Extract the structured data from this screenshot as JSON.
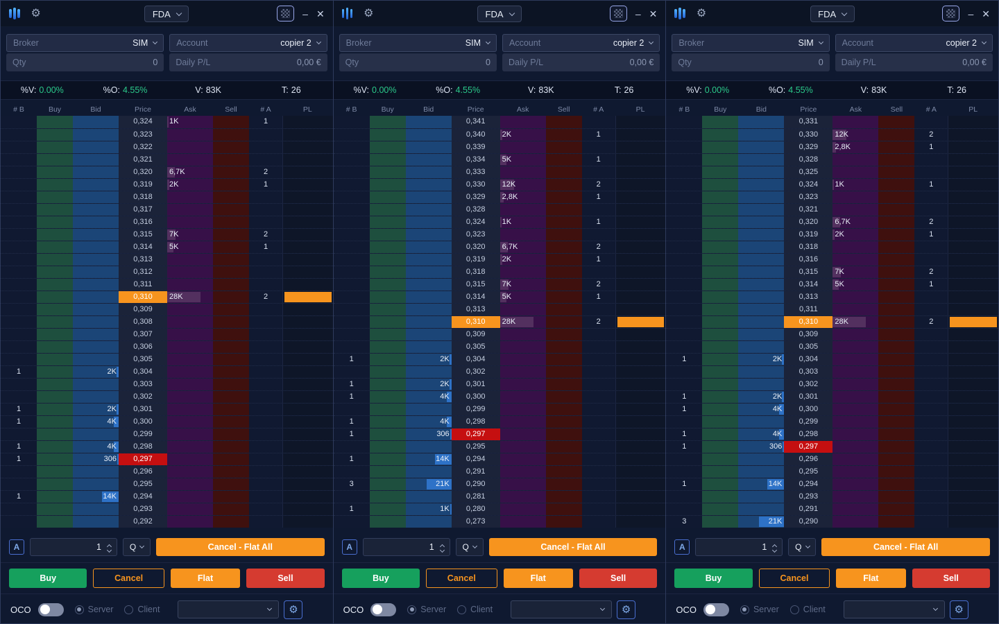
{
  "colors": {
    "accent_orange": "#F7941E",
    "buy_green": "#16A05D",
    "sell_red": "#D53B30",
    "last_price_red": "#C50F10",
    "bid_column_blue": "#1B4577",
    "ask_column_purple": "#371048",
    "buy_column_green": "#1E4F3E",
    "sell_column_maroon": "#3F100E",
    "bid_bar_blue": "#2E72C7",
    "ask_bar_purple": "#53305F",
    "stat_green": "#2BC98A"
  },
  "panels": [
    {
      "titlebar": {
        "symbol": "FDA"
      },
      "fields": {
        "broker_label": "Broker",
        "broker_value": "SIM",
        "account_label": "Account",
        "account_value": "copier 2",
        "qty_label": "Qty",
        "qty_value": "0",
        "daily_pl_label": "Daily P/L",
        "daily_pl_value": "0,00 €"
      },
      "stats": [
        {
          "label": "%V:",
          "value": "0.00%"
        },
        {
          "label": "%O:",
          "value": "4.55%"
        },
        {
          "label": "V:",
          "value": "83K"
        },
        {
          "label": "T:",
          "value": "26"
        }
      ],
      "columns": [
        "# B",
        "Buy",
        "Bid",
        "Price",
        "Ask",
        "Sell",
        "# A",
        "PL"
      ],
      "controls": {
        "a_label": "A",
        "qty_value": "1",
        "q_label": "Q",
        "cancel_flat_all": "Cancel - Flat All",
        "buy": "Buy",
        "cancel": "Cancel",
        "flat": "Flat",
        "sell": "Sell"
      },
      "oco": {
        "label": "OCO",
        "server": "Server",
        "client": "Client"
      },
      "rows": [
        {
          "price": "0,324",
          "ask": "1K",
          "ak": 1,
          "na": "1"
        },
        {
          "price": "0,323"
        },
        {
          "price": "0,322"
        },
        {
          "price": "0,321"
        },
        {
          "price": "0,320",
          "ask": "6,7K",
          "ak": 6.7,
          "na": "2"
        },
        {
          "price": "0,319",
          "ask": "2K",
          "ak": 2,
          "na": "1"
        },
        {
          "price": "0,318"
        },
        {
          "price": "0,317"
        },
        {
          "price": "0,316"
        },
        {
          "price": "0,315",
          "ask": "7K",
          "ak": 7,
          "na": "2"
        },
        {
          "price": "0,314",
          "ask": "5K",
          "ak": 5,
          "na": "1"
        },
        {
          "price": "0,313"
        },
        {
          "price": "0,312"
        },
        {
          "price": "0,311"
        },
        {
          "price": "0,310",
          "ask": "28K",
          "ak": 28,
          "na": "2",
          "hl": "orange",
          "pl": true
        },
        {
          "price": "0,309"
        },
        {
          "price": "0,308"
        },
        {
          "price": "0,307"
        },
        {
          "price": "0,306"
        },
        {
          "price": "0,305"
        },
        {
          "price": "0,304",
          "nb": "1",
          "bid": "2K",
          "bk": 2
        },
        {
          "price": "0,303"
        },
        {
          "price": "0,302"
        },
        {
          "price": "0,301",
          "nb": "1",
          "bid": "2K",
          "bk": 2
        },
        {
          "price": "0,300",
          "nb": "1",
          "bid": "4K",
          "bk": 4
        },
        {
          "price": "0,299"
        },
        {
          "price": "0,298",
          "nb": "1",
          "bid": "4K",
          "bk": 4
        },
        {
          "price": "0,297",
          "nb": "1",
          "bid": "306",
          "bk": 0.3,
          "hl": "red"
        },
        {
          "price": "0,296"
        },
        {
          "price": "0,295"
        },
        {
          "price": "0,294",
          "nb": "1",
          "bid": "14K",
          "bk": 14
        },
        {
          "price": "0,293"
        },
        {
          "price": "0,292"
        }
      ]
    },
    {
      "titlebar": {
        "symbol": "FDA"
      },
      "fields": {
        "broker_label": "Broker",
        "broker_value": "SIM",
        "account_label": "Account",
        "account_value": "copier 2",
        "qty_label": "Qty",
        "qty_value": "0",
        "daily_pl_label": "Daily P/L",
        "daily_pl_value": "0,00 €"
      },
      "stats": [
        {
          "label": "%V:",
          "value": "0.00%"
        },
        {
          "label": "%O:",
          "value": "4.55%"
        },
        {
          "label": "V:",
          "value": "83K"
        },
        {
          "label": "T:",
          "value": "26"
        }
      ],
      "columns": [
        "# B",
        "Buy",
        "Bid",
        "Price",
        "Ask",
        "Sell",
        "# A",
        "PL"
      ],
      "controls": {
        "a_label": "A",
        "qty_value": "1",
        "q_label": "Q",
        "cancel_flat_all": "Cancel - Flat All",
        "buy": "Buy",
        "cancel": "Cancel",
        "flat": "Flat",
        "sell": "Sell"
      },
      "oco": {
        "label": "OCO",
        "server": "Server",
        "client": "Client"
      },
      "rows": [
        {
          "price": "0,341"
        },
        {
          "price": "0,340",
          "ask": "2K",
          "ak": 2,
          "na": "1"
        },
        {
          "price": "0,339"
        },
        {
          "price": "0,334",
          "ask": "5K",
          "ak": 5,
          "na": "1"
        },
        {
          "price": "0,333"
        },
        {
          "price": "0,330",
          "ask": "12K",
          "ak": 12,
          "na": "2"
        },
        {
          "price": "0,329",
          "ask": "2,8K",
          "ak": 2.8,
          "na": "1"
        },
        {
          "price": "0,328"
        },
        {
          "price": "0,324",
          "ask": "1K",
          "ak": 1,
          "na": "1"
        },
        {
          "price": "0,323"
        },
        {
          "price": "0,320",
          "ask": "6,7K",
          "ak": 6.7,
          "na": "2"
        },
        {
          "price": "0,319",
          "ask": "2K",
          "ak": 2,
          "na": "1"
        },
        {
          "price": "0,318"
        },
        {
          "price": "0,315",
          "ask": "7K",
          "ak": 7,
          "na": "2"
        },
        {
          "price": "0,314",
          "ask": "5K",
          "ak": 5,
          "na": "1"
        },
        {
          "price": "0,313"
        },
        {
          "price": "0,310",
          "ask": "28K",
          "ak": 28,
          "na": "2",
          "hl": "orange",
          "pl": true
        },
        {
          "price": "0,309"
        },
        {
          "price": "0,305"
        },
        {
          "price": "0,304",
          "nb": "1",
          "bid": "2K",
          "bk": 2
        },
        {
          "price": "0,302"
        },
        {
          "price": "0,301",
          "nb": "1",
          "bid": "2K",
          "bk": 2
        },
        {
          "price": "0,300",
          "nb": "1",
          "bid": "4K",
          "bk": 4
        },
        {
          "price": "0,299"
        },
        {
          "price": "0,298",
          "nb": "1",
          "bid": "4K",
          "bk": 4
        },
        {
          "price": "0,297",
          "nb": "1",
          "bid": "306",
          "bk": 0.3,
          "hl": "red"
        },
        {
          "price": "0,295"
        },
        {
          "price": "0,294",
          "nb": "1",
          "bid": "14K",
          "bk": 14
        },
        {
          "price": "0,291"
        },
        {
          "price": "0,290",
          "nb": "3",
          "bid": "21K",
          "bk": 21
        },
        {
          "price": "0,281"
        },
        {
          "price": "0,280",
          "nb": "1",
          "bid": "1K",
          "bk": 1
        },
        {
          "price": "0,273"
        }
      ]
    },
    {
      "titlebar": {
        "symbol": "FDA"
      },
      "fields": {
        "broker_label": "Broker",
        "broker_value": "SIM",
        "account_label": "Account",
        "account_value": "copier 2",
        "qty_label": "Qty",
        "qty_value": "0",
        "daily_pl_label": "Daily P/L",
        "daily_pl_value": "0,00 €"
      },
      "stats": [
        {
          "label": "%V:",
          "value": "0.00%"
        },
        {
          "label": "%O:",
          "value": "4.55%"
        },
        {
          "label": "V:",
          "value": "83K"
        },
        {
          "label": "T:",
          "value": "26"
        }
      ],
      "columns": [
        "# B",
        "Buy",
        "Bid",
        "Price",
        "Ask",
        "Sell",
        "# A",
        "PL"
      ],
      "controls": {
        "a_label": "A",
        "qty_value": "1",
        "q_label": "Q",
        "cancel_flat_all": "Cancel - Flat All",
        "buy": "Buy",
        "cancel": "Cancel",
        "flat": "Flat",
        "sell": "Sell"
      },
      "oco": {
        "label": "OCO",
        "server": "Server",
        "client": "Client"
      },
      "rows": [
        {
          "price": "0,331"
        },
        {
          "price": "0,330",
          "ask": "12K",
          "ak": 12,
          "na": "2"
        },
        {
          "price": "0,329",
          "ask": "2,8K",
          "ak": 2.8,
          "na": "1"
        },
        {
          "price": "0,328"
        },
        {
          "price": "0,325"
        },
        {
          "price": "0,324",
          "ask": "1K",
          "ak": 1,
          "na": "1"
        },
        {
          "price": "0,323"
        },
        {
          "price": "0,321"
        },
        {
          "price": "0,320",
          "ask": "6,7K",
          "ak": 6.7,
          "na": "2"
        },
        {
          "price": "0,319",
          "ask": "2K",
          "ak": 2,
          "na": "1"
        },
        {
          "price": "0,318"
        },
        {
          "price": "0,316"
        },
        {
          "price": "0,315",
          "ask": "7K",
          "ak": 7,
          "na": "2"
        },
        {
          "price": "0,314",
          "ask": "5K",
          "ak": 5,
          "na": "1"
        },
        {
          "price": "0,313"
        },
        {
          "price": "0,311"
        },
        {
          "price": "0,310",
          "ask": "28K",
          "ak": 28,
          "na": "2",
          "hl": "orange",
          "pl": true
        },
        {
          "price": "0,309"
        },
        {
          "price": "0,305"
        },
        {
          "price": "0,304",
          "nb": "1",
          "bid": "2K",
          "bk": 2
        },
        {
          "price": "0,303"
        },
        {
          "price": "0,302"
        },
        {
          "price": "0,301",
          "nb": "1",
          "bid": "2K",
          "bk": 2
        },
        {
          "price": "0,300",
          "nb": "1",
          "bid": "4K",
          "bk": 4
        },
        {
          "price": "0,299"
        },
        {
          "price": "0,298",
          "nb": "1",
          "bid": "4K",
          "bk": 4
        },
        {
          "price": "0,297",
          "nb": "1",
          "bid": "306",
          "bk": 0.3,
          "hl": "red"
        },
        {
          "price": "0,296"
        },
        {
          "price": "0,295"
        },
        {
          "price": "0,294",
          "nb": "1",
          "bid": "14K",
          "bk": 14
        },
        {
          "price": "0,293"
        },
        {
          "price": "0,291"
        },
        {
          "price": "0,290",
          "nb": "3",
          "bid": "21K",
          "bk": 21
        }
      ]
    }
  ]
}
